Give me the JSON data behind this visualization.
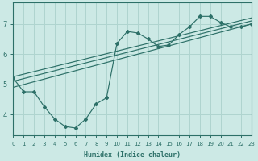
{
  "xlabel": "Humidex (Indice chaleur)",
  "xlim": [
    0,
    23
  ],
  "ylim": [
    3.3,
    7.7
  ],
  "xticks": [
    0,
    1,
    2,
    3,
    4,
    5,
    6,
    7,
    8,
    9,
    10,
    11,
    12,
    13,
    14,
    15,
    16,
    17,
    18,
    19,
    20,
    21,
    22,
    23
  ],
  "yticks": [
    4,
    5,
    6,
    7
  ],
  "bg_color": "#cce9e5",
  "line_color": "#2d7068",
  "grid_color": "#afd4cf",
  "line1_x": [
    0,
    1,
    2,
    3,
    4,
    5,
    6,
    7,
    8,
    9
  ],
  "line1_y": [
    5.2,
    4.75,
    4.75,
    4.25,
    3.85,
    3.6,
    3.55,
    3.85,
    4.35,
    4.55
  ],
  "line2_x": [
    9,
    10,
    11,
    12,
    13,
    14,
    15,
    16,
    17,
    18,
    19,
    20,
    21,
    22,
    23
  ],
  "line2_y": [
    4.55,
    6.35,
    6.75,
    6.7,
    6.5,
    6.25,
    6.3,
    6.65,
    6.9,
    7.25,
    7.25,
    7.05,
    6.9,
    6.9,
    7.0
  ],
  "line3_x": [
    0,
    23
  ],
  "line3_y": [
    4.9,
    7.0
  ],
  "line4_x": [
    0,
    23
  ],
  "line4_y": [
    5.1,
    7.1
  ],
  "line5_x": [
    0,
    23
  ],
  "line5_y": [
    5.25,
    7.2
  ]
}
